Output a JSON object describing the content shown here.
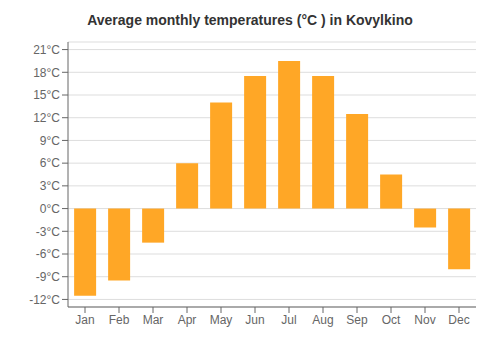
{
  "chart_data": {
    "type": "bar",
    "title": "Average monthly temperatures (°C ) in Kovylkino",
    "categories": [
      "Jan",
      "Feb",
      "Mar",
      "Apr",
      "May",
      "Jun",
      "Jul",
      "Aug",
      "Sep",
      "Oct",
      "Nov",
      "Dec"
    ],
    "values": [
      -11.5,
      -9.5,
      -4.5,
      6.0,
      14.0,
      17.5,
      19.5,
      17.5,
      12.5,
      4.5,
      -2.5,
      -8.0
    ],
    "color": "#FFA726",
    "ylim": [
      -13,
      22
    ],
    "yticks": [
      {
        "value": -12,
        "label": "-12°C"
      },
      {
        "value": -9,
        "label": "-9°C"
      },
      {
        "value": -6,
        "label": "-6°C"
      },
      {
        "value": -3,
        "label": "-3°C"
      },
      {
        "value": 0,
        "label": "0°C"
      },
      {
        "value": 3,
        "label": "3°C"
      },
      {
        "value": 6,
        "label": "6°C"
      },
      {
        "value": 9,
        "label": "9°C"
      },
      {
        "value": 12,
        "label": "12°C"
      },
      {
        "value": 15,
        "label": "15°C"
      },
      {
        "value": 18,
        "label": "18°C"
      },
      {
        "value": 21,
        "label": "21°C"
      }
    ],
    "grid": true
  }
}
